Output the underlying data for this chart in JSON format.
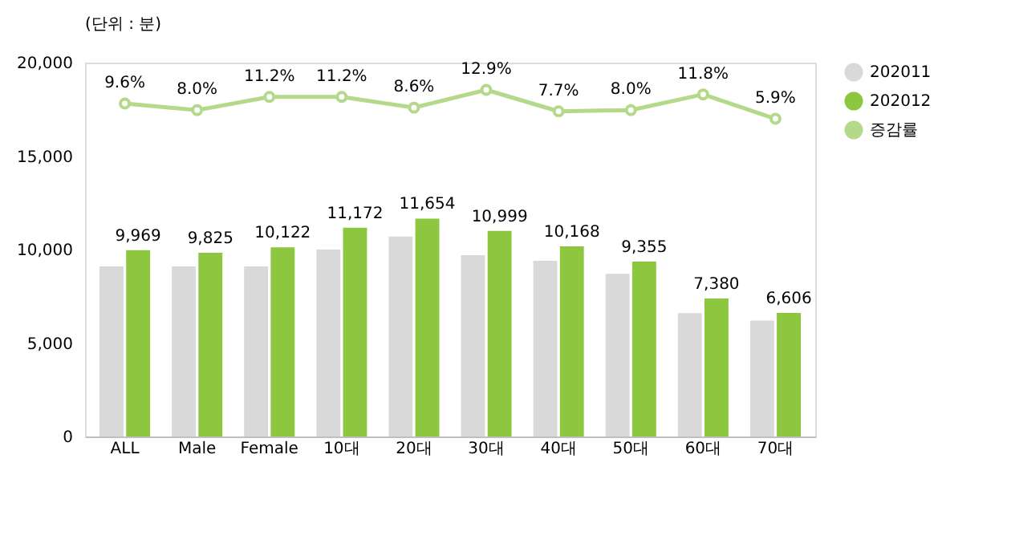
{
  "chart_data": {
    "type": "bar",
    "ylabel": "(단위 : 분)",
    "categories": [
      "ALL",
      "Male",
      "Female",
      "10대",
      "20대",
      "30대",
      "40대",
      "50대",
      "60대",
      "70대"
    ],
    "series": [
      {
        "name": "202011",
        "color": "#d9d9d9",
        "values": [
          9100,
          9100,
          9100,
          10000,
          10700,
          9700,
          9400,
          8700,
          6600,
          6200
        ]
      },
      {
        "name": "202012",
        "color": "#8dc63f",
        "values": [
          9969,
          9825,
          10122,
          11172,
          11654,
          10999,
          10168,
          9355,
          7380,
          6606
        ],
        "value_labels": [
          "9,969",
          "9,825",
          "10,122",
          "11,172",
          "11,654",
          "10,999",
          "10,168",
          "9,355",
          "7,380",
          "6,606"
        ]
      },
      {
        "name": "증감률",
        "type": "line",
        "axis": "y2",
        "color": "#b5d98a",
        "marker": "circle",
        "values": [
          9.6,
          8.0,
          11.2,
          11.2,
          8.6,
          12.9,
          7.7,
          8.0,
          11.8,
          5.9
        ],
        "value_labels": [
          "9.6%",
          "8.0%",
          "11.2%",
          "11.2%",
          "8.6%",
          "12.9%",
          "7.7%",
          "8.0%",
          "11.8%",
          "5.9%"
        ]
      }
    ],
    "ylim": [
      0,
      20000
    ],
    "yticks": [
      0,
      {
        "value": 5000,
        "label": "5,000"
      },
      {
        "value": 10000,
        "label": "10,000"
      },
      {
        "value": 15000,
        "label": "15,000"
      },
      {
        "value": 20000,
        "label": "20,000"
      }
    ],
    "y2lim": [
      -71,
      19.5
    ],
    "legend": "right",
    "grid": false
  }
}
